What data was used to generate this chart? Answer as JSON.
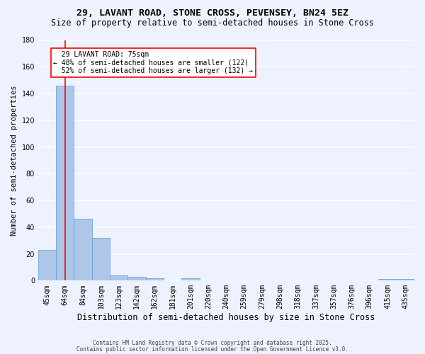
{
  "title": "29, LAVANT ROAD, STONE CROSS, PEVENSEY, BN24 5EZ",
  "subtitle": "Size of property relative to semi-detached houses in Stone Cross",
  "xlabel": "Distribution of semi-detached houses by size in Stone Cross",
  "ylabel": "Number of semi-detached properties",
  "footnote1": "Contains HM Land Registry data © Crown copyright and database right 2025.",
  "footnote2": "Contains public sector information licensed under the Open Government Licence v3.0.",
  "categories": [
    "45sqm",
    "64sqm",
    "84sqm",
    "103sqm",
    "123sqm",
    "142sqm",
    "162sqm",
    "181sqm",
    "201sqm",
    "220sqm",
    "240sqm",
    "259sqm",
    "279sqm",
    "298sqm",
    "318sqm",
    "337sqm",
    "357sqm",
    "376sqm",
    "396sqm",
    "415sqm",
    "435sqm"
  ],
  "values": [
    23,
    146,
    46,
    32,
    4,
    3,
    2,
    0,
    2,
    0,
    0,
    0,
    0,
    0,
    0,
    0,
    0,
    0,
    0,
    1,
    1
  ],
  "bar_color": "#aec6e8",
  "bar_edge_color": "#5b9bd5",
  "property_line_x": 1.0,
  "property_line_color": "red",
  "annotation_text": "  29 LAVANT ROAD: 75sqm\n← 48% of semi-detached houses are smaller (122)\n  52% of semi-detached houses are larger (132) →",
  "annotation_box_color": "white",
  "annotation_box_edge_color": "red",
  "ylim": [
    0,
    180
  ],
  "background_color": "#eef2ff",
  "grid_color": "white",
  "title_fontsize": 9.5,
  "subtitle_fontsize": 8.5,
  "xlabel_fontsize": 8.5,
  "ylabel_fontsize": 7.5,
  "tick_fontsize": 7,
  "annot_fontsize": 7,
  "footnote_fontsize": 5.5
}
